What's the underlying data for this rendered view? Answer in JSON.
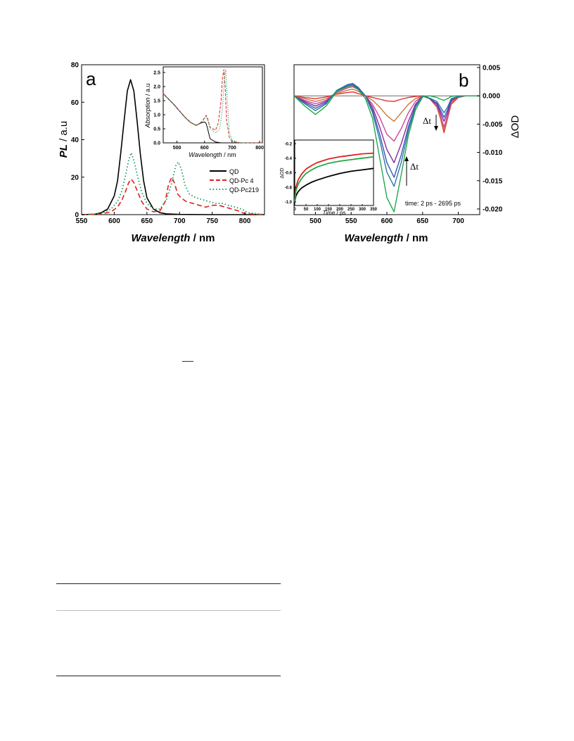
{
  "panel_a": {
    "panel_letter": "a",
    "xlabel_italic": "Wavelength",
    "xlabel_unit": " / nm",
    "ylabel_italic": "PL",
    "ylabel_unit": " / a.u",
    "x_ticks": [
      "550",
      "600",
      "650",
      "700",
      "750",
      "800"
    ],
    "y_ticks": [
      "0",
      "20",
      "40",
      "60",
      "80"
    ],
    "legend": [
      "QD",
      "QD-Pc 4",
      "QD-Pc219"
    ],
    "inset": {
      "xlabel_italic": "Wavelength",
      "xlabel_unit": " / nm",
      "ylabel_italic": "Absorption",
      "ylabel_unit": " / a.u",
      "x_ticks": [
        "500",
        "600",
        "700",
        "800"
      ],
      "y_ticks": [
        "0.0",
        "0.5",
        "1.0",
        "1.5",
        "2.0",
        "2.5"
      ]
    }
  },
  "panel_b": {
    "panel_letter": "b",
    "xlabel_italic": "Wavelength",
    "xlabel_unit": " / nm",
    "ylabel": "ΔOD",
    "x_ticks": [
      "500",
      "550",
      "600",
      "650",
      "700"
    ],
    "y_ticks": [
      "0.005",
      "0.000",
      "-0.005",
      "-0.010",
      "-0.015",
      "-0.020"
    ],
    "annotation_dt1": "Δt",
    "annotation_dt2": "Δt",
    "time_note": "time: 2 ps - 2695 ps",
    "inset": {
      "xlabel_italic": "Time",
      "xlabel_unit": " / ps",
      "ylabel": "ΔOD",
      "x_ticks": [
        "0",
        "50",
        "100",
        "150",
        "200",
        "250",
        "300",
        "350"
      ],
      "y_ticks": [
        "-0.2",
        "-0.4",
        "-0.6",
        "-0.8",
        "-1.0"
      ]
    }
  },
  "colors": {
    "qd": "#000000",
    "qd_pc4": "#e02020",
    "qd_pc219": "#1a9a5a",
    "ta": [
      "#e03030",
      "#c87a3a",
      "#d0449a",
      "#8a2aa0",
      "#3a55b0",
      "#2a7aa8",
      "#22a84a"
    ],
    "kin": [
      "#000000",
      "#e02020",
      "#22a84a"
    ]
  },
  "chart_data": [
    {
      "type": "line",
      "id": "pl-spectra",
      "xlim": [
        550,
        830
      ],
      "ylim": [
        0,
        80
      ],
      "series": [
        {
          "name": "QD",
          "x": [
            550,
            570,
            580,
            590,
            600,
            605,
            610,
            615,
            620,
            625,
            630,
            635,
            640,
            645,
            650,
            660,
            670,
            680,
            700,
            750,
            830
          ],
          "y": [
            0,
            0.2,
            1,
            3,
            10,
            18,
            33,
            50,
            66,
            72,
            66,
            50,
            32,
            18,
            9,
            3,
            1,
            0.4,
            0.1,
            0,
            0
          ]
        },
        {
          "name": "QD-Pc 4",
          "x": [
            550,
            580,
            595,
            605,
            612,
            618,
            622,
            626,
            630,
            636,
            642,
            650,
            660,
            670,
            678,
            683,
            688,
            692,
            697,
            702,
            710,
            720,
            730,
            740,
            750,
            760,
            770,
            780,
            790,
            800,
            830
          ],
          "y": [
            0,
            0.3,
            1.5,
            4,
            8,
            13,
            17,
            19,
            17,
            12,
            7,
            3,
            1.5,
            2,
            7,
            16,
            20,
            17,
            11,
            9,
            7,
            6,
            5,
            4,
            5,
            5,
            4,
            3,
            2,
            0.5,
            0
          ]
        },
        {
          "name": "QD-Pc219",
          "x": [
            550,
            580,
            595,
            605,
            612,
            618,
            622,
            626,
            630,
            636,
            642,
            650,
            660,
            670,
            680,
            688,
            694,
            698,
            703,
            708,
            715,
            725,
            735,
            745,
            755,
            765,
            775,
            785,
            795,
            805,
            830
          ],
          "y": [
            0,
            0.5,
            3,
            7,
            13,
            22,
            29,
            33,
            29,
            20,
            12,
            6,
            3,
            3,
            8,
            17,
            26,
            28,
            24,
            16,
            11,
            9,
            8,
            7,
            6,
            6,
            5,
            4,
            3,
            1,
            0
          ]
        }
      ]
    },
    {
      "type": "line",
      "id": "absorption-inset",
      "xlim": [
        450,
        810
      ],
      "ylim": [
        0,
        2.7
      ],
      "series": [
        {
          "name": "QD",
          "x": [
            450,
            470,
            490,
            510,
            530,
            550,
            570,
            590,
            600,
            605,
            610,
            615,
            620,
            640,
            660,
            700,
            810
          ],
          "y": [
            1.75,
            1.55,
            1.35,
            1.12,
            0.9,
            0.72,
            0.62,
            0.72,
            0.74,
            0.7,
            0.55,
            0.35,
            0.15,
            0.03,
            0,
            0,
            0
          ]
        },
        {
          "name": "QD-Pc 4",
          "x": [
            450,
            470,
            490,
            510,
            530,
            550,
            570,
            590,
            600,
            606,
            612,
            620,
            640,
            650,
            660,
            665,
            670,
            675,
            680,
            690,
            700,
            730,
            810
          ],
          "y": [
            1.75,
            1.55,
            1.35,
            1.12,
            0.9,
            0.72,
            0.62,
            0.75,
            0.9,
            0.98,
            0.85,
            0.55,
            0.45,
            0.7,
            1.5,
            2.3,
            2.6,
            2.0,
            0.8,
            0.2,
            0.05,
            0,
            0
          ]
        },
        {
          "name": "QD-Pc219",
          "x": [
            450,
            470,
            490,
            510,
            530,
            550,
            570,
            590,
            600,
            606,
            612,
            620,
            640,
            655,
            665,
            672,
            677,
            682,
            690,
            700,
            730,
            810
          ],
          "y": [
            1.75,
            1.55,
            1.35,
            1.12,
            0.9,
            0.72,
            0.62,
            0.73,
            0.85,
            0.92,
            0.8,
            0.5,
            0.35,
            0.5,
            1.2,
            2.3,
            2.6,
            1.6,
            0.4,
            0.1,
            0,
            0
          ]
        }
      ]
    },
    {
      "type": "line",
      "id": "transient-absorption",
      "xlim": [
        470,
        730
      ],
      "ylim": [
        -0.021,
        0.0055
      ],
      "series": [
        {
          "x": [
            470,
            485,
            500,
            515,
            530,
            545,
            552,
            560,
            570,
            580,
            590,
            600,
            610,
            620,
            630,
            640,
            650,
            660,
            670,
            675,
            680,
            685,
            690,
            700,
            710,
            720,
            730
          ],
          "y": [
            0,
            -0.0003,
            -0.0005,
            -0.0002,
            0.0003,
            0.0006,
            0.0007,
            0.0004,
            0,
            -0.0003,
            -0.0006,
            -0.0009,
            -0.001,
            -0.0006,
            -0.0003,
            -0.0001,
            0,
            -0.0005,
            -0.002,
            -0.004,
            -0.0065,
            -0.004,
            -0.0015,
            -0.0003,
            0,
            0,
            0
          ]
        },
        {
          "x": [
            470,
            485,
            500,
            515,
            530,
            545,
            552,
            560,
            570,
            580,
            590,
            600,
            610,
            620,
            630,
            640,
            650,
            660,
            670,
            675,
            680,
            685,
            690,
            700,
            710,
            720,
            730
          ],
          "y": [
            0,
            -0.0005,
            -0.001,
            -0.0005,
            0.0004,
            0.001,
            0.0012,
            0.0008,
            0,
            -0.0008,
            -0.002,
            -0.0035,
            -0.0045,
            -0.003,
            -0.0015,
            -0.0005,
            0,
            -0.0005,
            -0.002,
            -0.0038,
            -0.006,
            -0.0038,
            -0.0012,
            -0.0002,
            0,
            0,
            0
          ]
        },
        {
          "x": [
            470,
            485,
            500,
            515,
            530,
            545,
            552,
            560,
            570,
            580,
            590,
            600,
            610,
            620,
            630,
            640,
            650,
            660,
            670,
            675,
            680,
            685,
            690,
            700,
            710,
            720,
            730
          ],
          "y": [
            0,
            -0.0008,
            -0.0014,
            -0.0008,
            0.0006,
            0.0014,
            0.0016,
            0.0011,
            0,
            -0.0015,
            -0.0038,
            -0.0068,
            -0.008,
            -0.0058,
            -0.003,
            -0.001,
            0,
            -0.0005,
            -0.0018,
            -0.0035,
            -0.0055,
            -0.0035,
            -0.001,
            -0.0002,
            0,
            0,
            0
          ]
        },
        {
          "x": [
            470,
            485,
            500,
            515,
            530,
            545,
            552,
            560,
            570,
            580,
            590,
            600,
            610,
            620,
            630,
            640,
            650,
            660,
            670,
            675,
            680,
            685,
            690,
            700,
            710,
            720,
            730
          ],
          "y": [
            0,
            -0.001,
            -0.0018,
            -0.001,
            0.0008,
            0.0017,
            0.0019,
            0.0013,
            0,
            -0.002,
            -0.0055,
            -0.0095,
            -0.0118,
            -0.0085,
            -0.0045,
            -0.0015,
            0,
            -0.0005,
            -0.0015,
            -0.003,
            -0.0045,
            -0.003,
            -0.0008,
            -0.0001,
            0,
            0,
            0
          ]
        },
        {
          "x": [
            470,
            485,
            500,
            515,
            530,
            545,
            552,
            560,
            570,
            580,
            590,
            600,
            610,
            620,
            630,
            640,
            650,
            660,
            670,
            675,
            680,
            685,
            690,
            700,
            710,
            720,
            730
          ],
          "y": [
            0,
            -0.0012,
            -0.0022,
            -0.0012,
            0.0009,
            0.0019,
            0.0021,
            0.0014,
            0,
            -0.0025,
            -0.0068,
            -0.0118,
            -0.0144,
            -0.0105,
            -0.0055,
            -0.0018,
            0,
            -0.0005,
            -0.0013,
            -0.0025,
            -0.0038,
            -0.0025,
            -0.0006,
            -0.0001,
            0,
            0,
            0
          ]
        },
        {
          "x": [
            470,
            485,
            500,
            515,
            530,
            545,
            552,
            560,
            570,
            580,
            590,
            600,
            610,
            620,
            630,
            640,
            650,
            660,
            670,
            675,
            680,
            685,
            690,
            700,
            710,
            720,
            730
          ],
          "y": [
            0,
            -0.0014,
            -0.0026,
            -0.0014,
            0.001,
            0.002,
            0.0022,
            0.0015,
            0,
            -0.003,
            -0.0078,
            -0.0135,
            -0.016,
            -0.0118,
            -0.0062,
            -0.002,
            0,
            -0.0004,
            -0.001,
            -0.002,
            -0.003,
            -0.002,
            -0.0005,
            -0.0001,
            0,
            0,
            0
          ]
        },
        {
          "x": [
            470,
            485,
            500,
            515,
            530,
            545,
            552,
            560,
            570,
            580,
            590,
            600,
            610,
            620,
            630,
            640,
            650,
            660,
            670,
            675,
            680,
            685,
            690,
            700,
            710,
            720,
            730
          ],
          "y": [
            0,
            -0.0018,
            -0.0033,
            -0.0018,
            0.0008,
            0.0016,
            0.0018,
            0.0011,
            -0.0005,
            -0.004,
            -0.011,
            -0.018,
            -0.0205,
            -0.014,
            -0.007,
            -0.0025,
            -0.0002,
            0,
            -0.0003,
            -0.0006,
            -0.0008,
            -0.0005,
            -0.0001,
            0,
            0,
            0,
            0
          ]
        }
      ]
    },
    {
      "type": "line",
      "id": "kinetics-inset",
      "xlim": [
        0,
        350
      ],
      "ylim": [
        -1.05,
        -0.15
      ],
      "series": [
        {
          "x": [
            0,
            5,
            15,
            30,
            50,
            75,
            100,
            150,
            200,
            250,
            300,
            350
          ],
          "y": [
            -1.0,
            -0.92,
            -0.86,
            -0.81,
            -0.77,
            -0.73,
            -0.7,
            -0.65,
            -0.61,
            -0.58,
            -0.56,
            -0.54
          ]
        },
        {
          "x": [
            0,
            5,
            15,
            30,
            50,
            75,
            100,
            150,
            200,
            250,
            300,
            350
          ],
          "y": [
            -1.0,
            -0.8,
            -0.7,
            -0.62,
            -0.55,
            -0.5,
            -0.46,
            -0.41,
            -0.38,
            -0.36,
            -0.34,
            -0.33
          ]
        },
        {
          "x": [
            0,
            5,
            15,
            30,
            50,
            75,
            100,
            150,
            200,
            250,
            300,
            350
          ],
          "y": [
            -1.0,
            -0.85,
            -0.76,
            -0.68,
            -0.61,
            -0.56,
            -0.52,
            -0.47,
            -0.44,
            -0.42,
            -0.4,
            -0.38
          ]
        }
      ]
    }
  ]
}
